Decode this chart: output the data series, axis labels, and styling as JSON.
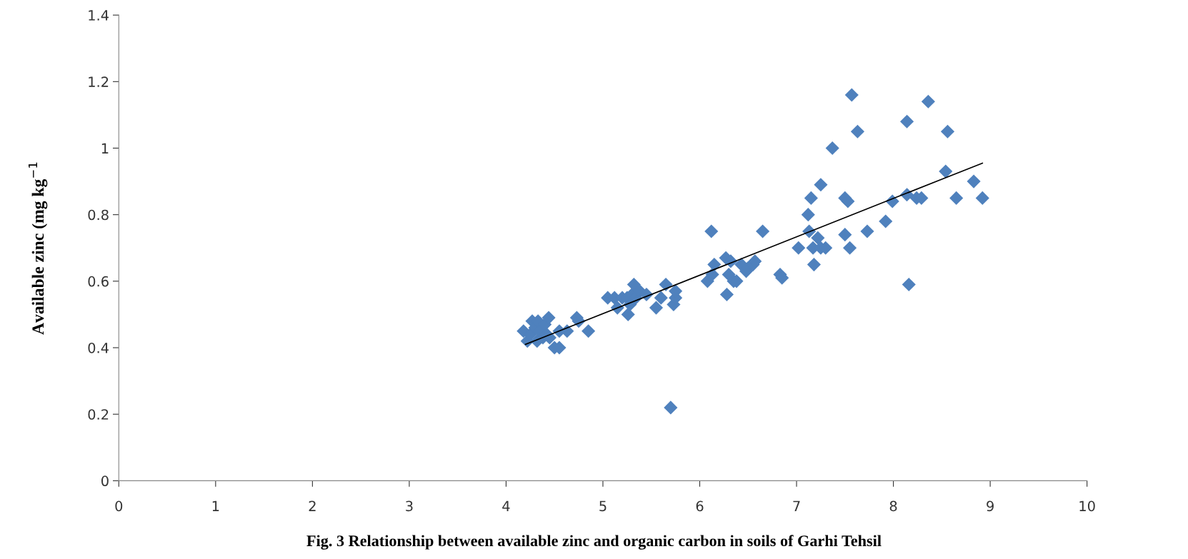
{
  "chart_data": {
    "type": "scatter",
    "title": "Fig. 3 Relationship between available zinc and organic carbon in soils of Garhi Tehsil",
    "ylabel": "Available zinc (mg kg$^{−1}$",
    "xlim": [
      0,
      10
    ],
    "xticks": [
      0,
      1,
      2,
      3,
      4,
      5,
      6,
      7,
      8,
      9,
      10
    ],
    "ylim": [
      0,
      1.4
    ],
    "yticks": [
      0,
      0.2,
      0.4,
      0.6,
      0.8,
      1,
      1.2,
      1.4
    ],
    "grid": false,
    "legend": false,
    "marker": "diamond",
    "series": [
      {
        "color": "#4f81bd",
        "x": [
          4.18,
          4.22,
          4.25,
          4.27,
          4.3,
          4.32,
          4.33,
          4.35,
          4.38,
          4.4,
          4.42,
          4.44,
          4.45,
          4.5,
          4.55,
          4.55,
          4.63,
          4.73,
          4.75,
          4.85,
          5.05,
          5.12,
          5.15,
          5.2,
          5.25,
          5.26,
          5.28,
          5.3,
          5.32,
          5.34,
          5.38,
          5.45,
          5.55,
          5.6,
          5.65,
          5.7,
          5.73,
          5.75,
          5.75,
          6.08,
          6.12,
          6.13,
          6.15,
          6.27,
          6.28,
          6.3,
          6.32,
          6.35,
          6.38,
          6.43,
          6.48,
          6.5,
          6.55,
          6.57,
          6.65,
          6.83,
          6.85,
          7.02,
          7.12,
          7.13,
          7.15,
          7.17,
          7.18,
          7.22,
          7.25,
          7.25,
          7.3,
          7.37,
          7.5,
          7.5,
          7.53,
          7.55,
          7.57,
          7.63,
          7.73,
          7.92,
          7.99,
          8.14,
          8.14,
          8.16,
          8.24,
          8.29,
          8.36,
          8.54,
          8.56,
          8.65,
          8.83,
          8.92
        ],
        "values": [
          0.45,
          0.42,
          0.44,
          0.48,
          0.46,
          0.42,
          0.48,
          0.45,
          0.43,
          0.47,
          0.44,
          0.49,
          0.43,
          0.4,
          0.4,
          0.45,
          0.45,
          0.49,
          0.48,
          0.45,
          0.55,
          0.55,
          0.52,
          0.55,
          0.55,
          0.5,
          0.53,
          0.56,
          0.59,
          0.55,
          0.57,
          0.56,
          0.52,
          0.55,
          0.59,
          0.22,
          0.53,
          0.55,
          0.57,
          0.6,
          0.75,
          0.62,
          0.65,
          0.67,
          0.56,
          0.62,
          0.66,
          0.6,
          0.6,
          0.65,
          0.63,
          0.64,
          0.65,
          0.66,
          0.75,
          0.62,
          0.61,
          0.7,
          0.8,
          0.75,
          0.85,
          0.7,
          0.65,
          0.73,
          0.89,
          0.7,
          0.7,
          1.0,
          0.74,
          0.85,
          0.84,
          0.7,
          1.16,
          1.05,
          0.75,
          0.78,
          0.84,
          1.08,
          0.86,
          0.59,
          0.85,
          0.85,
          1.14,
          0.93,
          1.05,
          0.85,
          0.9,
          0.85
        ]
      },
      {
        "type": "line",
        "color": "#000000",
        "marker": "none",
        "line_style": "solid",
        "x": [
          4.2,
          8.92
        ],
        "values": [
          0.41,
          0.955
        ]
      }
    ]
  }
}
